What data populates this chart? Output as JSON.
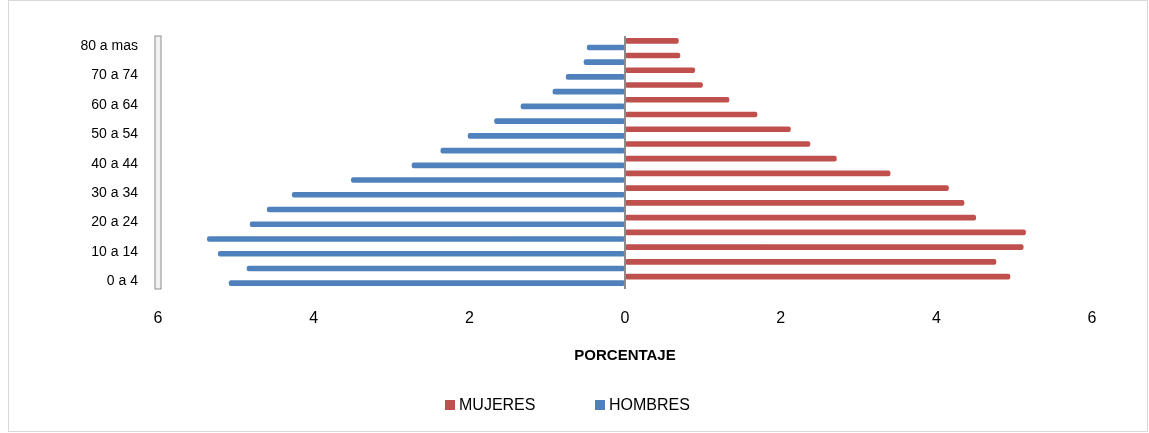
{
  "chart_data": {
    "type": "bar",
    "orientation": "horizontal",
    "xlabel": "PORCENTAJE",
    "categories": [
      "80 a mas",
      null,
      "70 a 74",
      null,
      "60 a 64",
      null,
      "50 a 54",
      null,
      "40 a 44",
      null,
      "30 a 34",
      null,
      "20 a 24",
      null,
      "10 a 14",
      null,
      "0 a 4"
    ],
    "series": [
      {
        "name": "MUJERES",
        "color": "#c0504d",
        "values": [
          0.69,
          0.71,
          0.9,
          1.0,
          1.34,
          1.7,
          2.13,
          2.38,
          2.72,
          3.41,
          4.16,
          4.36,
          4.51,
          5.15,
          5.12,
          4.77,
          4.95
        ]
      },
      {
        "name": "HOMBRES",
        "color": "#4f81bd",
        "values": [
          -0.49,
          -0.53,
          -0.76,
          -0.93,
          -1.34,
          -1.68,
          -2.02,
          -2.37,
          -2.74,
          -3.52,
          -4.28,
          -4.6,
          -4.82,
          -5.37,
          -5.23,
          -4.86,
          -5.09
        ]
      }
    ],
    "xlim": [
      -6,
      6
    ],
    "xticks": [
      {
        "value": -6,
        "label": "6"
      },
      {
        "value": -4,
        "label": "4"
      },
      {
        "value": -2,
        "label": "2"
      },
      0,
      2,
      4,
      6
    ],
    "legend": "bottom"
  }
}
